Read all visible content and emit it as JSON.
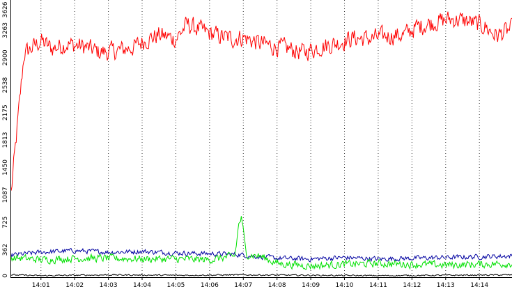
{
  "chart_data": {
    "type": "line",
    "title": "",
    "xlabel": "",
    "ylabel": "",
    "ylim": [
      0,
      3626
    ],
    "xlim": [
      "14:00:07",
      "14:14:58"
    ],
    "grid": "vertical dotted",
    "legend": "none",
    "y_ticks": [
      "0",
      "362",
      "725",
      "1087",
      "1450",
      "1813",
      "2175",
      "2538",
      "2900",
      "3263",
      "3626"
    ],
    "x_ticks": [
      "14:01",
      "14:02",
      "14:03",
      "14:04",
      "14:05",
      "14:06",
      "14:07",
      "14:08",
      "14:09",
      "14:10",
      "14:11",
      "14:12",
      "14:13",
      "14:14"
    ],
    "x_tick_times": [
      "14:01:00",
      "14:02:00",
      "14:03:00",
      "14:04:00",
      "14:05:00",
      "14:06:00",
      "14:07:00",
      "14:08:00",
      "14:09:00",
      "14:10:00",
      "14:11:00",
      "14:12:00",
      "14:13:00",
      "14:14:00"
    ],
    "series": [
      {
        "color": "#ff0000",
        "x": [
          "14:00:07",
          "14:00:30",
          "14:01:00",
          "14:01:20",
          "14:01:45",
          "14:02:15",
          "14:02:45",
          "14:03:15",
          "14:03:45",
          "14:04:05",
          "14:04:30",
          "14:05:00",
          "14:05:20",
          "14:05:45",
          "14:06:15",
          "14:06:40",
          "14:07:00",
          "14:07:30",
          "14:07:55",
          "14:08:20",
          "14:08:45",
          "14:09:15",
          "14:09:45",
          "14:10:15",
          "14:10:45",
          "14:11:15",
          "14:11:45",
          "14:12:10",
          "14:12:40",
          "14:13:10",
          "14:13:40",
          "14:14:10",
          "14:14:30",
          "14:14:58"
        ],
        "values": [
          1110,
          2950,
          3120,
          3020,
          3080,
          3050,
          2970,
          2990,
          3040,
          3130,
          3200,
          3150,
          3340,
          3260,
          3190,
          3150,
          3170,
          3090,
          3050,
          3020,
          2970,
          3040,
          3090,
          3160,
          3150,
          3190,
          3200,
          3310,
          3370,
          3410,
          3380,
          3310,
          3190,
          3280
        ],
        "noise": 170
      },
      {
        "color": "#0000a0",
        "x": [
          "14:00:07",
          "14:01:00",
          "14:02:00",
          "14:03:00",
          "14:04:00",
          "14:05:00",
          "14:06:00",
          "14:06:50",
          "14:07:30",
          "14:08:00",
          "14:09:00",
          "14:10:00",
          "14:11:00",
          "14:12:00",
          "14:13:00",
          "14:14:00",
          "14:14:58"
        ],
        "values": [
          290,
          330,
          350,
          330,
          340,
          320,
          310,
          300,
          270,
          250,
          240,
          260,
          240,
          250,
          260,
          270,
          280
        ],
        "noise": 45
      },
      {
        "color": "#00e000",
        "x": [
          "14:00:07",
          "14:01:00",
          "14:02:00",
          "14:03:00",
          "14:04:00",
          "14:05:00",
          "14:06:00",
          "14:06:45",
          "14:06:52",
          "14:06:57",
          "14:07:05",
          "14:07:30",
          "14:08:00",
          "14:09:00",
          "14:10:00",
          "14:11:00",
          "14:12:00",
          "14:13:00",
          "14:14:00",
          "14:14:58"
        ],
        "values": [
          260,
          230,
          250,
          250,
          240,
          240,
          230,
          280,
          700,
          790,
          300,
          280,
          180,
          150,
          170,
          180,
          170,
          160,
          170,
          180
        ],
        "noise": 70
      },
      {
        "color": "#000000",
        "x": [
          "14:00:07",
          "14:01:00",
          "14:03:00",
          "14:05:00",
          "14:07:00",
          "14:09:00",
          "14:11:00",
          "14:13:00",
          "14:14:58"
        ],
        "values": [
          30,
          20,
          30,
          25,
          30,
          25,
          20,
          25,
          30
        ],
        "noise": 12
      }
    ]
  }
}
